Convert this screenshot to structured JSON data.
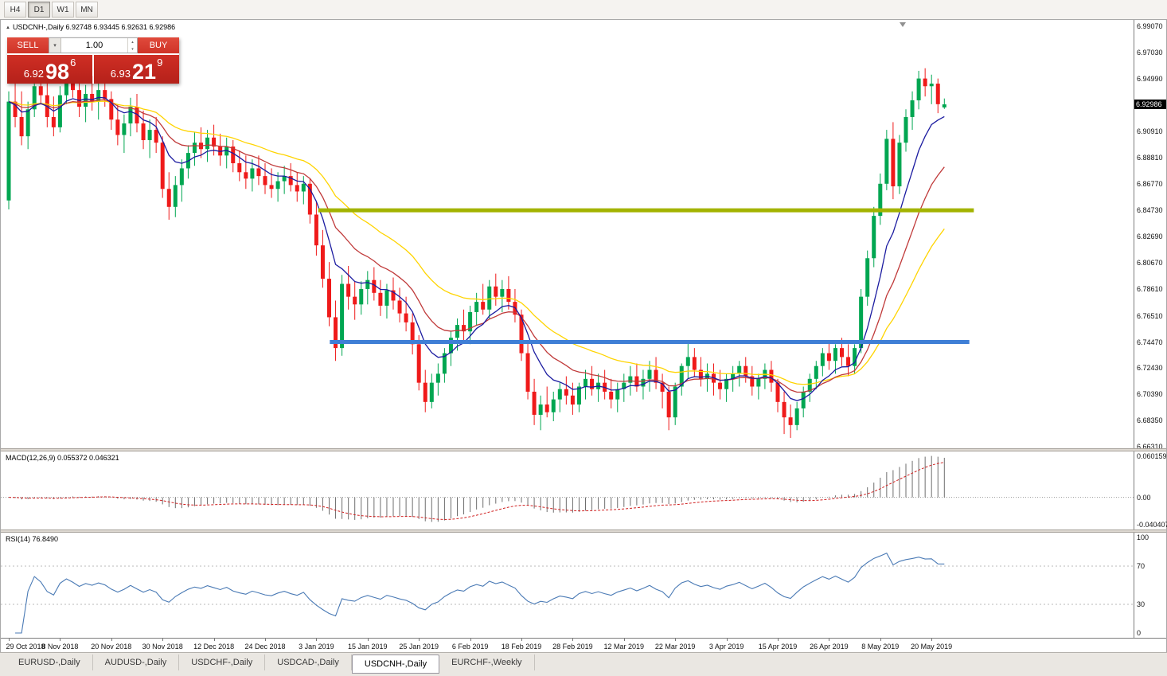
{
  "window": {
    "title": "USDCNH-,Daily 6.92748 6.93445 6.92631 6.92986"
  },
  "toolbar": {
    "timeframes": [
      "H4",
      "D1",
      "W1",
      "MN"
    ],
    "active": "D1"
  },
  "trade_panel": {
    "sell_label": "SELL",
    "buy_label": "BUY",
    "volume": "1.00",
    "bid": {
      "prefix": "6.92",
      "big": "98",
      "sup": "6"
    },
    "ask": {
      "prefix": "6.93",
      "big": "21",
      "sup": "9"
    }
  },
  "tabs": {
    "items": [
      "EURUSD-,Daily",
      "AUDUSD-,Daily",
      "USDCHF-,Daily",
      "USDCAD-,Daily",
      "USDCNH-,Daily",
      "EURCHF-,Weekly"
    ],
    "active": "USDCNH-,Daily"
  },
  "colors": {
    "candle_up": "#00a651",
    "candle_down": "#ef1a1a",
    "ma_fast_blue": "#1b1ba0",
    "ma_medium_red": "#c03a3a",
    "ma_slow_yellow": "#ffd400",
    "macd_histogram": "#6e6e6e",
    "macd_signal": "#d02020",
    "rsi_line": "#4a7ab5",
    "price_tag_bg": "#000000"
  },
  "chart_data": {
    "type": "candlestick",
    "symbol": "USDCNH-",
    "timeframe": "Daily",
    "title": "USDCNH-,Daily 6.92748 6.93445 6.92631 6.92986",
    "ohlc_current": {
      "open": 6.92748,
      "high": 6.93445,
      "low": 6.92631,
      "close": 6.92986
    },
    "current_price_text": "6.92986",
    "price_scale_labels": [
      "6.99070",
      "6.97030",
      "6.94990",
      "6.90910",
      "6.88810",
      "6.86770",
      "6.84730",
      "6.82690",
      "6.80670",
      "6.78610",
      "6.76510",
      "6.74470",
      "6.72430",
      "6.70390",
      "6.68350",
      "6.66310"
    ],
    "x_labels": [
      "29 Oct 2018",
      "8 Nov 2018",
      "20 Nov 2018",
      "30 Nov 2018",
      "12 Dec 2018",
      "24 Dec 2018",
      "3 Jan 2019",
      "15 Jan 2019",
      "25 Jan 2019",
      "6 Feb 2019",
      "18 Feb 2019",
      "28 Feb 2019",
      "12 Mar 2019",
      "22 Mar 2019",
      "3 Apr 2019",
      "15 Apr 2019",
      "26 Apr 2019",
      "8 May 2019",
      "20 May 2019"
    ],
    "x_label_step": 8,
    "levels": [
      {
        "name": "resistance",
        "price": 6.8473,
        "color": "#a3b300",
        "i_from": 48.3,
        "i_to": 150.6,
        "width": 5
      },
      {
        "name": "support",
        "price": 6.7447,
        "color": "#3f7fd6",
        "i_from": 50.1,
        "i_to": 149.9,
        "width": 5
      }
    ],
    "moving_averages": [
      {
        "name": "fast",
        "period": 8,
        "color": "#1b1ba0"
      },
      {
        "name": "medium",
        "period": 16,
        "color": "#c03a3a"
      },
      {
        "name": "slow",
        "period": 30,
        "color": "#ffd400"
      }
    ],
    "macd": {
      "title": "MACD(12,26,9) 0.055372 0.046321",
      "params": [
        12,
        26,
        9
      ],
      "value": 0.055372,
      "signal_value": 0.046321,
      "scale_labels": [
        "0.060159",
        "0.00",
        "-0.040407"
      ]
    },
    "rsi": {
      "title": "RSI(14) 76.8490",
      "period": 14,
      "value": 76.849,
      "scale_labels": [
        "100",
        "70",
        "30",
        "0"
      ],
      "bands": [
        70,
        30
      ]
    },
    "candles_ohlc": [
      [
        6.855,
        6.94,
        6.848,
        6.932
      ],
      [
        6.932,
        6.952,
        6.912,
        6.92
      ],
      [
        6.92,
        6.94,
        6.898,
        6.905
      ],
      [
        6.905,
        6.932,
        6.895,
        6.926
      ],
      [
        6.926,
        6.95,
        6.92,
        6.944
      ],
      [
        6.944,
        6.958,
        6.93,
        6.937
      ],
      [
        6.937,
        6.946,
        6.912,
        6.92
      ],
      [
        6.92,
        6.936,
        6.905,
        6.912
      ],
      [
        6.912,
        6.944,
        6.908,
        6.937
      ],
      [
        6.937,
        6.955,
        6.93,
        6.95
      ],
      [
        6.95,
        6.96,
        6.935,
        6.941
      ],
      [
        6.941,
        6.95,
        6.92,
        6.928
      ],
      [
        6.928,
        6.945,
        6.916,
        6.938
      ],
      [
        6.938,
        6.952,
        6.925,
        6.932
      ],
      [
        6.932,
        6.948,
        6.918,
        6.941
      ],
      [
        6.941,
        6.95,
        6.928,
        6.934
      ],
      [
        6.934,
        6.94,
        6.91,
        6.918
      ],
      [
        6.918,
        6.93,
        6.898,
        6.906
      ],
      [
        6.906,
        6.922,
        6.892,
        6.915
      ],
      [
        6.915,
        6.935,
        6.905,
        6.928
      ],
      [
        6.928,
        6.938,
        6.908,
        6.915
      ],
      [
        6.915,
        6.925,
        6.895,
        6.902
      ],
      [
        6.902,
        6.918,
        6.888,
        6.91
      ],
      [
        6.91,
        6.92,
        6.892,
        6.9
      ],
      [
        6.9,
        6.905,
        6.857,
        6.864
      ],
      [
        6.864,
        6.877,
        6.84,
        6.85
      ],
      [
        6.85,
        6.874,
        6.842,
        6.867
      ],
      [
        6.867,
        6.887,
        6.854,
        6.88
      ],
      [
        6.88,
        6.898,
        6.872,
        6.892
      ],
      [
        6.892,
        6.908,
        6.882,
        6.9
      ],
      [
        6.9,
        6.912,
        6.888,
        6.895
      ],
      [
        6.895,
        6.91,
        6.885,
        6.904
      ],
      [
        6.904,
        6.914,
        6.89,
        6.897
      ],
      [
        6.897,
        6.907,
        6.882,
        6.89
      ],
      [
        6.89,
        6.904,
        6.88,
        6.897
      ],
      [
        6.897,
        6.902,
        6.877,
        6.884
      ],
      [
        6.884,
        6.894,
        6.87,
        6.877
      ],
      [
        6.877,
        6.89,
        6.864,
        6.872
      ],
      [
        6.872,
        6.887,
        6.862,
        6.88
      ],
      [
        6.88,
        6.89,
        6.867,
        6.874
      ],
      [
        6.874,
        6.884,
        6.86,
        6.867
      ],
      [
        6.867,
        6.88,
        6.857,
        6.864
      ],
      [
        6.864,
        6.877,
        6.854,
        6.87
      ],
      [
        6.87,
        6.882,
        6.86,
        6.874
      ],
      [
        6.874,
        6.884,
        6.862,
        6.867
      ],
      [
        6.867,
        6.877,
        6.854,
        6.862
      ],
      [
        6.862,
        6.874,
        6.852,
        6.868
      ],
      [
        6.868,
        6.872,
        6.837,
        6.844
      ],
      [
        6.844,
        6.854,
        6.812,
        6.82
      ],
      [
        6.82,
        6.832,
        6.787,
        6.794
      ],
      [
        6.794,
        6.807,
        6.757,
        6.764
      ],
      [
        6.764,
        6.777,
        6.73,
        6.74
      ],
      [
        6.74,
        6.797,
        6.734,
        6.79
      ],
      [
        6.79,
        6.804,
        6.77,
        6.78
      ],
      [
        6.78,
        6.792,
        6.762,
        6.774
      ],
      [
        6.774,
        6.792,
        6.766,
        6.786
      ],
      [
        6.786,
        6.8,
        6.774,
        6.793
      ],
      [
        6.793,
        6.803,
        6.777,
        6.783
      ],
      [
        6.783,
        6.793,
        6.765,
        6.773
      ],
      [
        6.773,
        6.79,
        6.763,
        6.785
      ],
      [
        6.785,
        6.795,
        6.77,
        6.777
      ],
      [
        6.777,
        6.787,
        6.76,
        6.767
      ],
      [
        6.767,
        6.78,
        6.753,
        6.76
      ],
      [
        6.76,
        6.767,
        6.735,
        6.743
      ],
      [
        6.743,
        6.75,
        6.707,
        6.713
      ],
      [
        6.713,
        6.723,
        6.69,
        6.698
      ],
      [
        6.698,
        6.72,
        6.693,
        6.713
      ],
      [
        6.713,
        6.728,
        6.703,
        6.72
      ],
      [
        6.72,
        6.74,
        6.713,
        6.736
      ],
      [
        6.736,
        6.753,
        6.726,
        6.748
      ],
      [
        6.748,
        6.763,
        6.738,
        6.758
      ],
      [
        6.758,
        6.77,
        6.746,
        6.753
      ],
      [
        6.753,
        6.773,
        6.743,
        6.768
      ],
      [
        6.768,
        6.783,
        6.758,
        6.776
      ],
      [
        6.776,
        6.79,
        6.766,
        6.77
      ],
      [
        6.77,
        6.793,
        6.763,
        6.788
      ],
      [
        6.788,
        6.798,
        6.773,
        6.78
      ],
      [
        6.78,
        6.793,
        6.768,
        6.786
      ],
      [
        6.786,
        6.796,
        6.77,
        6.776
      ],
      [
        6.776,
        6.786,
        6.76,
        6.766
      ],
      [
        6.766,
        6.77,
        6.73,
        6.736
      ],
      [
        6.736,
        6.746,
        6.7,
        6.706
      ],
      [
        6.706,
        6.716,
        6.68,
        6.688
      ],
      [
        6.688,
        6.703,
        6.676,
        6.696
      ],
      [
        6.696,
        6.71,
        6.686,
        6.69
      ],
      [
        6.69,
        6.706,
        6.683,
        6.7
      ],
      [
        6.7,
        6.713,
        6.69,
        6.708
      ],
      [
        6.708,
        6.718,
        6.696,
        6.703
      ],
      [
        6.703,
        6.713,
        6.688,
        6.696
      ],
      [
        6.696,
        6.713,
        6.69,
        6.71
      ],
      [
        6.71,
        6.723,
        6.7,
        6.716
      ],
      [
        6.716,
        6.726,
        6.703,
        6.708
      ],
      [
        6.708,
        6.72,
        6.698,
        6.713
      ],
      [
        6.713,
        6.723,
        6.7,
        6.706
      ],
      [
        6.706,
        6.716,
        6.693,
        6.7
      ],
      [
        6.7,
        6.713,
        6.69,
        6.708
      ],
      [
        6.708,
        6.72,
        6.698,
        6.713
      ],
      [
        6.713,
        6.726,
        6.703,
        6.718
      ],
      [
        6.718,
        6.728,
        6.706,
        6.71
      ],
      [
        6.71,
        6.723,
        6.7,
        6.716
      ],
      [
        6.716,
        6.73,
        6.706,
        6.723
      ],
      [
        6.723,
        6.733,
        6.708,
        6.713
      ],
      [
        6.713,
        6.72,
        6.693,
        6.706
      ],
      [
        6.706,
        6.71,
        6.676,
        6.686
      ],
      [
        6.686,
        6.713,
        6.68,
        6.71
      ],
      [
        6.71,
        6.728,
        6.703,
        6.726
      ],
      [
        6.726,
        6.746,
        6.716,
        6.733
      ],
      [
        6.733,
        6.74,
        6.718,
        6.723
      ],
      [
        6.723,
        6.733,
        6.71,
        6.716
      ],
      [
        6.716,
        6.728,
        6.706,
        6.72
      ],
      [
        6.72,
        6.728,
        6.703,
        6.713
      ],
      [
        6.713,
        6.723,
        6.7,
        6.708
      ],
      [
        6.708,
        6.72,
        6.698,
        6.716
      ],
      [
        6.716,
        6.726,
        6.706,
        6.72
      ],
      [
        6.72,
        6.73,
        6.71,
        6.726
      ],
      [
        6.726,
        6.733,
        6.713,
        6.718
      ],
      [
        6.718,
        6.726,
        6.703,
        6.71
      ],
      [
        6.71,
        6.72,
        6.7,
        6.716
      ],
      [
        6.716,
        6.728,
        6.708,
        6.723
      ],
      [
        6.723,
        6.73,
        6.706,
        6.713
      ],
      [
        6.713,
        6.716,
        6.69,
        6.698
      ],
      [
        6.698,
        6.706,
        6.673,
        6.686
      ],
      [
        6.686,
        6.696,
        6.67,
        6.68
      ],
      [
        6.68,
        6.698,
        6.676,
        6.693
      ],
      [
        6.693,
        6.71,
        6.686,
        6.706
      ],
      [
        6.706,
        6.72,
        6.698,
        6.716
      ],
      [
        6.716,
        6.73,
        6.708,
        6.726
      ],
      [
        6.726,
        6.74,
        6.718,
        6.736
      ],
      [
        6.736,
        6.746,
        6.723,
        6.73
      ],
      [
        6.73,
        6.743,
        6.72,
        6.74
      ],
      [
        6.74,
        6.748,
        6.726,
        6.733
      ],
      [
        6.733,
        6.743,
        6.718,
        6.726
      ],
      [
        6.726,
        6.743,
        6.72,
        6.74
      ],
      [
        6.74,
        6.786,
        6.736,
        6.78
      ],
      [
        6.78,
        6.816,
        6.773,
        6.81
      ],
      [
        6.81,
        6.85,
        6.803,
        6.843
      ],
      [
        6.843,
        6.876,
        6.836,
        6.868
      ],
      [
        6.868,
        6.91,
        6.863,
        6.903
      ],
      [
        6.903,
        6.916,
        6.856,
        6.866
      ],
      [
        6.866,
        6.906,
        6.86,
        6.9
      ],
      [
        6.9,
        6.926,
        6.893,
        6.92
      ],
      [
        6.92,
        6.94,
        6.91,
        6.933
      ],
      [
        6.933,
        6.956,
        6.926,
        6.95
      ],
      [
        6.95,
        6.958,
        6.936,
        6.944
      ],
      [
        6.944,
        6.953,
        6.93,
        6.946
      ],
      [
        6.946,
        6.95,
        6.923,
        6.93
      ],
      [
        6.92748,
        6.93445,
        6.92631,
        6.92986
      ]
    ]
  }
}
